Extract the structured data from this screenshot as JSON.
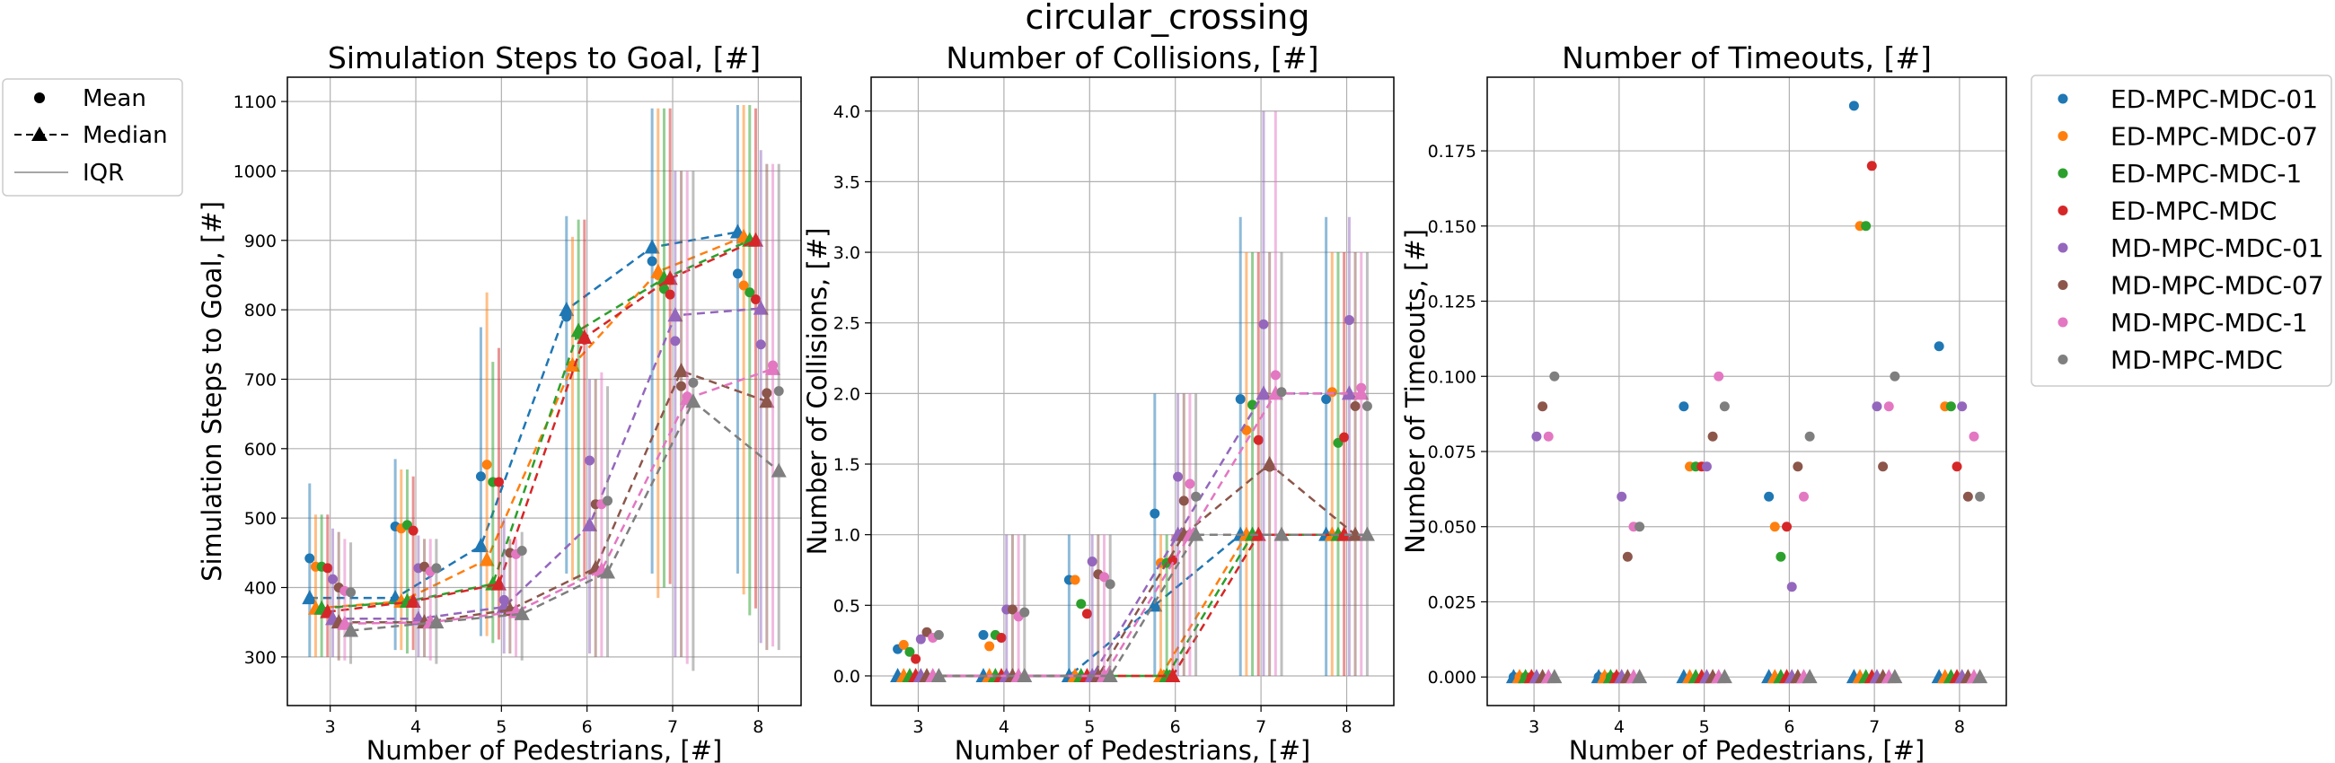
{
  "figure": {
    "suptitle": "circular_crossing"
  },
  "style_legend": {
    "mean": "Mean",
    "median": "Median",
    "iqr": "IQR"
  },
  "series_names": [
    "ED-MPC-MDC-01",
    "ED-MPC-MDC-07",
    "ED-MPC-MDC-1",
    "ED-MPC-MDC",
    "MD-MPC-MDC-01",
    "MD-MPC-MDC-07",
    "MD-MPC-MDC-1",
    "MD-MPC-MDC"
  ],
  "series_colors": [
    "#1f77b4",
    "#ff7f0e",
    "#2ca02c",
    "#d62728",
    "#9467bd",
    "#8c564b",
    "#e377c2",
    "#7f7f7f"
  ],
  "chart_data": [
    {
      "type": "scatter",
      "title": "Simulation Steps to Goal, [#]",
      "xlabel": "Number of Pedestrians, [#]",
      "ylabel": "Simulation Steps to Goal, [#]",
      "xlim": [
        2.5,
        8.5
      ],
      "ylim": [
        230,
        1135
      ],
      "xticks": [
        3,
        4,
        5,
        6,
        7,
        8
      ],
      "yticks": [
        300,
        400,
        500,
        600,
        700,
        800,
        900,
        1000,
        1100
      ],
      "ytick_labels": [
        "300",
        "400",
        "500",
        "600",
        "700",
        "800",
        "900",
        "1000",
        "1100"
      ],
      "grid": true,
      "median_lines": true,
      "x": [
        3,
        4,
        5,
        6,
        7,
        8
      ],
      "series": [
        {
          "name": "ED-MPC-MDC-01",
          "mean": [
            442,
            488,
            560,
            790,
            870,
            852
          ],
          "median": [
            385,
            385,
            460,
            800,
            890,
            912
          ],
          "q1": [
            300,
            310,
            330,
            420,
            420,
            420
          ],
          "q3": [
            550,
            585,
            775,
            935,
            1090,
            1095
          ]
        },
        {
          "name": "ED-MPC-MDC-07",
          "mean": [
            430,
            485,
            577,
            720,
            850,
            835
          ],
          "median": [
            370,
            380,
            440,
            720,
            855,
            905
          ],
          "q1": [
            300,
            310,
            330,
            410,
            385,
            390
          ],
          "q3": [
            505,
            570,
            825,
            905,
            1090,
            1095
          ]
        },
        {
          "name": "ED-MPC-MDC-1",
          "mean": [
            430,
            490,
            552,
            765,
            830,
            825
          ],
          "median": [
            370,
            380,
            405,
            770,
            845,
            900
          ],
          "q1": [
            300,
            305,
            320,
            410,
            400,
            360
          ],
          "q3": [
            505,
            570,
            725,
            930,
            1090,
            1095
          ]
        },
        {
          "name": "ED-MPC-MDC",
          "mean": [
            428,
            482,
            552,
            757,
            822,
            815
          ],
          "median": [
            365,
            380,
            405,
            760,
            845,
            900
          ],
          "q1": [
            300,
            310,
            325,
            415,
            405,
            370
          ],
          "q3": [
            505,
            560,
            745,
            930,
            1090,
            1090
          ]
        },
        {
          "name": "MD-MPC-MDC-01",
          "mean": [
            412,
            428,
            382,
            583,
            755,
            750
          ],
          "median": [
            355,
            355,
            372,
            490,
            792,
            802
          ],
          "q1": [
            300,
            300,
            305,
            305,
            300,
            320
          ],
          "q3": [
            485,
            475,
            500,
            700,
            1000,
            1030
          ]
        },
        {
          "name": "MD-MPC-MDC-07",
          "mean": [
            400,
            430,
            450,
            520,
            690,
            680
          ],
          "median": [
            350,
            350,
            368,
            428,
            712,
            668
          ],
          "q1": [
            295,
            300,
            305,
            300,
            300,
            310
          ],
          "q3": [
            480,
            470,
            470,
            700,
            1000,
            1010
          ]
        },
        {
          "name": "MD-MPC-MDC-1",
          "mean": [
            395,
            423,
            448,
            520,
            675,
            720
          ],
          "median": [
            348,
            350,
            365,
            425,
            672,
            715
          ],
          "q1": [
            295,
            295,
            300,
            300,
            290,
            315
          ],
          "q3": [
            470,
            470,
            470,
            710,
            1000,
            1010
          ]
        },
        {
          "name": "MD-MPC-MDC",
          "mean": [
            393,
            428,
            453,
            525,
            695,
            683
          ],
          "median": [
            338,
            350,
            362,
            422,
            668,
            568
          ],
          "q1": [
            290,
            290,
            295,
            300,
            280,
            310
          ],
          "q3": [
            465,
            470,
            480,
            690,
            1000,
            1010
          ]
        }
      ]
    },
    {
      "type": "scatter",
      "title": "Number of Collisions, [#]",
      "xlabel": "Number of Pedestrians, [#]",
      "ylabel": "Number of Collisions, [#]",
      "xlim": [
        2.45,
        8.55
      ],
      "ylim": [
        -0.21,
        4.24
      ],
      "xticks": [
        3,
        4,
        5,
        6,
        7,
        8
      ],
      "yticks": [
        0.0,
        0.5,
        1.0,
        1.5,
        2.0,
        2.5,
        3.0,
        3.5,
        4.0
      ],
      "ytick_labels": [
        "0.0",
        "0.5",
        "1.0",
        "1.5",
        "2.0",
        "2.5",
        "3.0",
        "3.5",
        "4.0"
      ],
      "grid": true,
      "median_lines": true,
      "x": [
        3,
        4,
        5,
        6,
        7,
        8
      ],
      "series": [
        {
          "name": "ED-MPC-MDC-01",
          "mean": [
            0.19,
            0.29,
            0.68,
            1.15,
            1.96,
            1.96
          ],
          "median": [
            0,
            0,
            0,
            0.5,
            1,
            1
          ],
          "q1": [
            0,
            0,
            0,
            0,
            0,
            0
          ],
          "q3": [
            0,
            0,
            1,
            2,
            3.25,
            3.25
          ]
        },
        {
          "name": "ED-MPC-MDC-07",
          "mean": [
            0.22,
            0.21,
            0.68,
            0.8,
            1.74,
            2.01
          ],
          "median": [
            0,
            0,
            0,
            0,
            1,
            1
          ],
          "q1": [
            0,
            0,
            0,
            0,
            0,
            0
          ],
          "q3": [
            0,
            0,
            0,
            1,
            3,
            3
          ]
        },
        {
          "name": "ED-MPC-MDC-1",
          "mean": [
            0.17,
            0.29,
            0.51,
            0.8,
            1.92,
            1.65
          ],
          "median": [
            0,
            0,
            0,
            0,
            1,
            1
          ],
          "q1": [
            0,
            0,
            0,
            0,
            0,
            0
          ],
          "q3": [
            0,
            0,
            0,
            1,
            3,
            3
          ]
        },
        {
          "name": "ED-MPC-MDC",
          "mean": [
            0.12,
            0.27,
            0.44,
            0.82,
            1.67,
            1.69
          ],
          "median": [
            0,
            0,
            0,
            0,
            1,
            1
          ],
          "q1": [
            0,
            0,
            0,
            0,
            0,
            0
          ],
          "q3": [
            0,
            0,
            0,
            1,
            3,
            3
          ]
        },
        {
          "name": "MD-MPC-MDC-01",
          "mean": [
            0.26,
            0.47,
            0.81,
            1.41,
            2.49,
            2.52
          ],
          "median": [
            0,
            0,
            0,
            1,
            2,
            2
          ],
          "q1": [
            0,
            0,
            0,
            0,
            0,
            0
          ],
          "q3": [
            0,
            1,
            1,
            2,
            4,
            3.25
          ]
        },
        {
          "name": "MD-MPC-MDC-07",
          "mean": [
            0.31,
            0.47,
            0.72,
            1.24,
            1.48,
            1.91
          ],
          "median": [
            0,
            0,
            0,
            1,
            1.5,
            1
          ],
          "q1": [
            0,
            0,
            0,
            0,
            0,
            0
          ],
          "q3": [
            0,
            1,
            1,
            2,
            3,
            3
          ]
        },
        {
          "name": "MD-MPC-MDC-1",
          "mean": [
            0.27,
            0.42,
            0.7,
            1.36,
            2.13,
            2.04
          ],
          "median": [
            0,
            0,
            0,
            1,
            2,
            2
          ],
          "q1": [
            0,
            0,
            0,
            0,
            0,
            0
          ],
          "q3": [
            0,
            1,
            1,
            2,
            4,
            3
          ]
        },
        {
          "name": "MD-MPC-MDC",
          "mean": [
            0.29,
            0.45,
            0.65,
            1.27,
            2.01,
            1.91
          ],
          "median": [
            0,
            0,
            0,
            1,
            1,
            1
          ],
          "q1": [
            0,
            0,
            0,
            0,
            0,
            0
          ],
          "q3": [
            0,
            1,
            1,
            2,
            3,
            3
          ]
        }
      ]
    },
    {
      "type": "scatter",
      "title": "Number of Timeouts, [#]",
      "xlabel": "Number of Pedestrians, [#]",
      "ylabel": "Number of Timeouts, [#]",
      "xlim": [
        2.45,
        8.55
      ],
      "ylim": [
        -0.0095,
        0.1995
      ],
      "xticks": [
        3,
        4,
        5,
        6,
        7,
        8
      ],
      "yticks": [
        0.0,
        0.025,
        0.05,
        0.075,
        0.1,
        0.125,
        0.15,
        0.175
      ],
      "ytick_labels": [
        "0.000",
        "0.025",
        "0.050",
        "0.075",
        "0.100",
        "0.125",
        "0.150",
        "0.175"
      ],
      "grid": true,
      "median_lines": false,
      "x": [
        3,
        4,
        5,
        6,
        7,
        8
      ],
      "series": [
        {
          "name": "ED-MPC-MDC-01",
          "mean": [
            0,
            0,
            0.09,
            0.06,
            0.19,
            0.11
          ],
          "median": [
            0,
            0,
            0,
            0,
            0,
            0
          ]
        },
        {
          "name": "ED-MPC-MDC-07",
          "mean": [
            0,
            0,
            0.07,
            0.05,
            0.15,
            0.09
          ],
          "median": [
            0,
            0,
            0,
            0,
            0,
            0
          ]
        },
        {
          "name": "ED-MPC-MDC-1",
          "mean": [
            0,
            0,
            0.07,
            0.04,
            0.15,
            0.09
          ],
          "median": [
            0,
            0,
            0,
            0,
            0,
            0
          ]
        },
        {
          "name": "ED-MPC-MDC",
          "mean": [
            0,
            0,
            0.07,
            0.05,
            0.17,
            0.07
          ],
          "median": [
            0,
            0,
            0,
            0,
            0,
            0
          ]
        },
        {
          "name": "MD-MPC-MDC-01",
          "mean": [
            0.08,
            0.06,
            0.07,
            0.03,
            0.09,
            0.09
          ],
          "median": [
            0,
            0,
            0,
            0,
            0,
            0
          ]
        },
        {
          "name": "MD-MPC-MDC-07",
          "mean": [
            0.09,
            0.04,
            0.08,
            0.07,
            0.07,
            0.06
          ],
          "median": [
            0,
            0,
            0,
            0,
            0,
            0
          ]
        },
        {
          "name": "MD-MPC-MDC-1",
          "mean": [
            0.08,
            0.05,
            0.1,
            0.06,
            0.09,
            0.08
          ],
          "median": [
            0,
            0,
            0,
            0,
            0,
            0
          ]
        },
        {
          "name": "MD-MPC-MDC",
          "mean": [
            0.1,
            0.05,
            0.09,
            0.08,
            0.1,
            0.06
          ],
          "median": [
            0,
            0,
            0,
            0,
            0,
            0
          ]
        }
      ]
    }
  ]
}
